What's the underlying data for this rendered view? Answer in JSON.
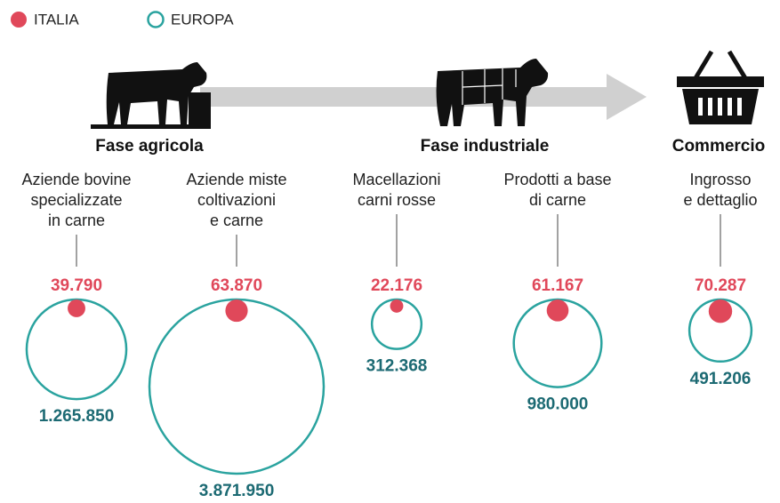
{
  "chart_data": {
    "type": "bubble",
    "phases": [
      "Fase agricola",
      "Fase industriale",
      "Commercio"
    ],
    "categories": [
      [
        "Aziende bovine",
        "specializzate",
        "in carne"
      ],
      [
        "Aziende miste",
        "coltivazioni",
        "e carne"
      ],
      [
        "Macellazioni",
        "carni rosse"
      ],
      [
        "Prodotti a base",
        "di carne"
      ],
      [
        "Ingrosso",
        "e dettaglio"
      ]
    ],
    "series": [
      {
        "name": "ITALIA",
        "color": "#e0485a",
        "values": [
          39790,
          63870,
          22176,
          61167,
          70287
        ],
        "value_labels": [
          "39.790",
          "63.870",
          "22.176",
          "61.167",
          "70.287"
        ]
      },
      {
        "name": "EUROPA",
        "color": "#2aa39f",
        "label_color": "#1c6a73",
        "values": [
          1265850,
          3871950,
          312368,
          980000,
          491206
        ],
        "value_labels": [
          "1.265.850",
          "3.871.950",
          "312.368",
          "980.000",
          "491.206"
        ]
      }
    ]
  }
}
